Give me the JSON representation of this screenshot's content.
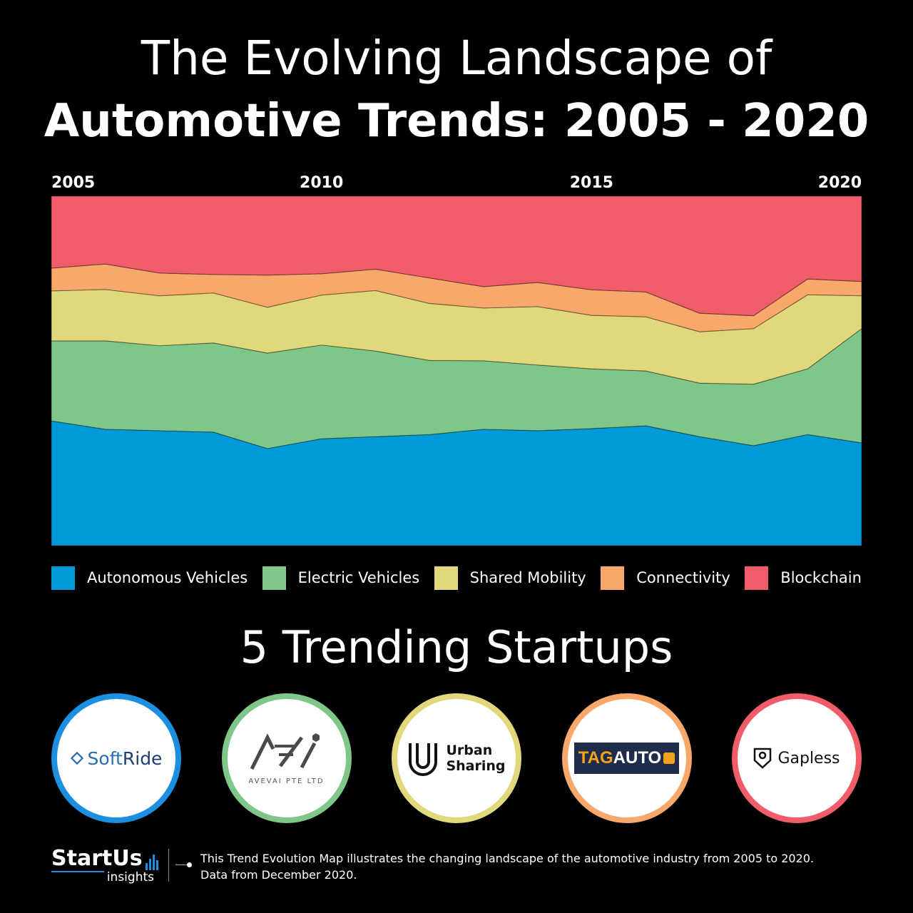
{
  "header": {
    "title_line1": "The Evolving Landscape of",
    "title_line2": "Automotive Trends: 2005 - 2020"
  },
  "chart_data": {
    "type": "area",
    "stacked": true,
    "normalized_percent": true,
    "x": [
      2005,
      2006,
      2007,
      2008,
      2009,
      2010,
      2011,
      2012,
      2013,
      2014,
      2015,
      2016,
      2017,
      2018,
      2019,
      2020
    ],
    "x_ticks": [
      2005,
      2010,
      2015,
      2020
    ],
    "series": [
      {
        "name": "Autonomous Vehicles",
        "color": "#009ad9",
        "values": [
          35.7,
          33.3,
          32.9,
          32.5,
          27.8,
          30.6,
          31.2,
          31.8,
          33.3,
          32.9,
          33.5,
          34.3,
          31.2,
          28.6,
          31.8,
          29.4
        ]
      },
      {
        "name": "Electric Vehicles",
        "color": "#7fc789",
        "values": [
          22.9,
          25.3,
          24.3,
          25.5,
          27.3,
          26.8,
          24.5,
          21.2,
          19.6,
          18.8,
          17.1,
          15.7,
          15.3,
          17.6,
          18.8,
          32.7
        ]
      },
      {
        "name": "Shared Mobility",
        "color": "#e1d87c",
        "values": [
          14.3,
          14.7,
          14.3,
          14.3,
          13.1,
          14.3,
          17.3,
          16.3,
          15.1,
          16.7,
          15.3,
          15.5,
          14.7,
          15.9,
          21.2,
          9.4
        ]
      },
      {
        "name": "Connectivity",
        "color": "#f9a86c",
        "values": [
          6.5,
          7.3,
          6.5,
          5.3,
          9.2,
          6.1,
          6.1,
          7.3,
          6.1,
          6.9,
          7.3,
          7.1,
          5.3,
          3.7,
          4.5,
          4.1
        ]
      },
      {
        "name": "Blockchain",
        "color": "#f15c6a",
        "values": [
          20.6,
          19.4,
          22.0,
          22.4,
          22.6,
          22.2,
          20.9,
          23.4,
          25.9,
          24.7,
          26.8,
          27.4,
          33.5,
          34.2,
          23.7,
          24.4
        ]
      }
    ]
  },
  "section": {
    "title": "5 Trending Startups"
  },
  "startups": [
    {
      "name_a": "Soft",
      "name_b": "Ride",
      "ring": "#1d8fe0"
    },
    {
      "name": "AVEVAI PTE LTD",
      "ring": "#7fc789"
    },
    {
      "line1": "Urban",
      "line2": "Sharing",
      "ring": "#e1d87c"
    },
    {
      "name_a": "TAG",
      "name_b": "AUTO",
      "ring": "#f9a86c"
    },
    {
      "name": "Gapless",
      "ring": "#f15c6a"
    }
  ],
  "footer": {
    "brand": "StartUs",
    "brand_sub": "insights",
    "line1": "This Trend Evolution Map illustrates the changing landscape of the automotive industry from 2005 to 2020.",
    "line2": "Data from December 2020."
  }
}
